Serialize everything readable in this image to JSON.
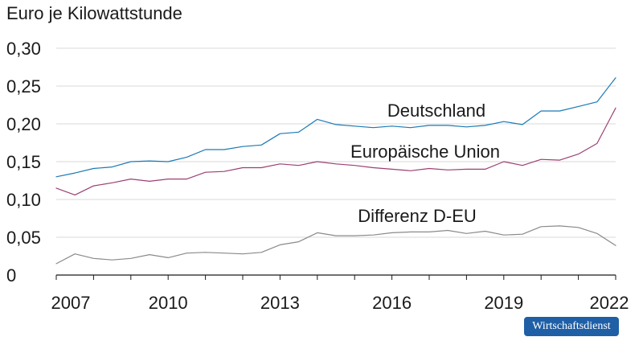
{
  "chart_data": {
    "type": "line",
    "ylabel": "Euro je Kilowattstunde",
    "ylim": [
      0,
      0.3
    ],
    "yticks": [
      "0",
      "0,05",
      "0,10",
      "0,15",
      "0,20",
      "0,25",
      "0,30"
    ],
    "xlim": [
      2007,
      2022
    ],
    "xticks": [
      "2007",
      "2010",
      "2013",
      "2016",
      "2019",
      "2022"
    ],
    "grid": true,
    "x": [
      2007.0,
      2007.5,
      2008.0,
      2008.5,
      2009.0,
      2009.5,
      2010.0,
      2010.5,
      2011.0,
      2011.5,
      2012.0,
      2012.5,
      2013.0,
      2013.5,
      2014.0,
      2014.5,
      2015.0,
      2015.5,
      2016.0,
      2016.5,
      2017.0,
      2017.5,
      2018.0,
      2018.5,
      2019.0,
      2019.5,
      2020.0,
      2020.5,
      2021.0,
      2021.5,
      2022.0
    ],
    "series": [
      {
        "name": "Deutschland",
        "color": "#1a7ab5",
        "values": [
          0.13,
          0.135,
          0.141,
          0.143,
          0.15,
          0.151,
          0.15,
          0.156,
          0.166,
          0.166,
          0.17,
          0.172,
          0.187,
          0.189,
          0.206,
          0.199,
          0.197,
          0.195,
          0.197,
          0.195,
          0.198,
          0.198,
          0.196,
          0.198,
          0.203,
          0.199,
          0.217,
          0.217,
          0.223,
          0.229,
          0.261
        ]
      },
      {
        "name": "Europäische Union",
        "color": "#9c3f72",
        "values": [
          0.115,
          0.106,
          0.118,
          0.122,
          0.127,
          0.124,
          0.127,
          0.127,
          0.136,
          0.137,
          0.142,
          0.142,
          0.147,
          0.145,
          0.15,
          0.147,
          0.145,
          0.142,
          0.14,
          0.138,
          0.141,
          0.139,
          0.14,
          0.14,
          0.15,
          0.145,
          0.153,
          0.152,
          0.16,
          0.174,
          0.221
        ]
      },
      {
        "name": "Differenz D-EU",
        "color": "#8a8a8a",
        "values": [
          0.015,
          0.028,
          0.022,
          0.02,
          0.022,
          0.027,
          0.023,
          0.029,
          0.03,
          0.029,
          0.028,
          0.03,
          0.04,
          0.044,
          0.056,
          0.052,
          0.052,
          0.053,
          0.056,
          0.057,
          0.057,
          0.059,
          0.055,
          0.058,
          0.053,
          0.054,
          0.064,
          0.065,
          0.063,
          0.055,
          0.039
        ]
      }
    ]
  },
  "badge": {
    "text": "Wirtschaftsdienst",
    "color": "#1f5fa6"
  }
}
